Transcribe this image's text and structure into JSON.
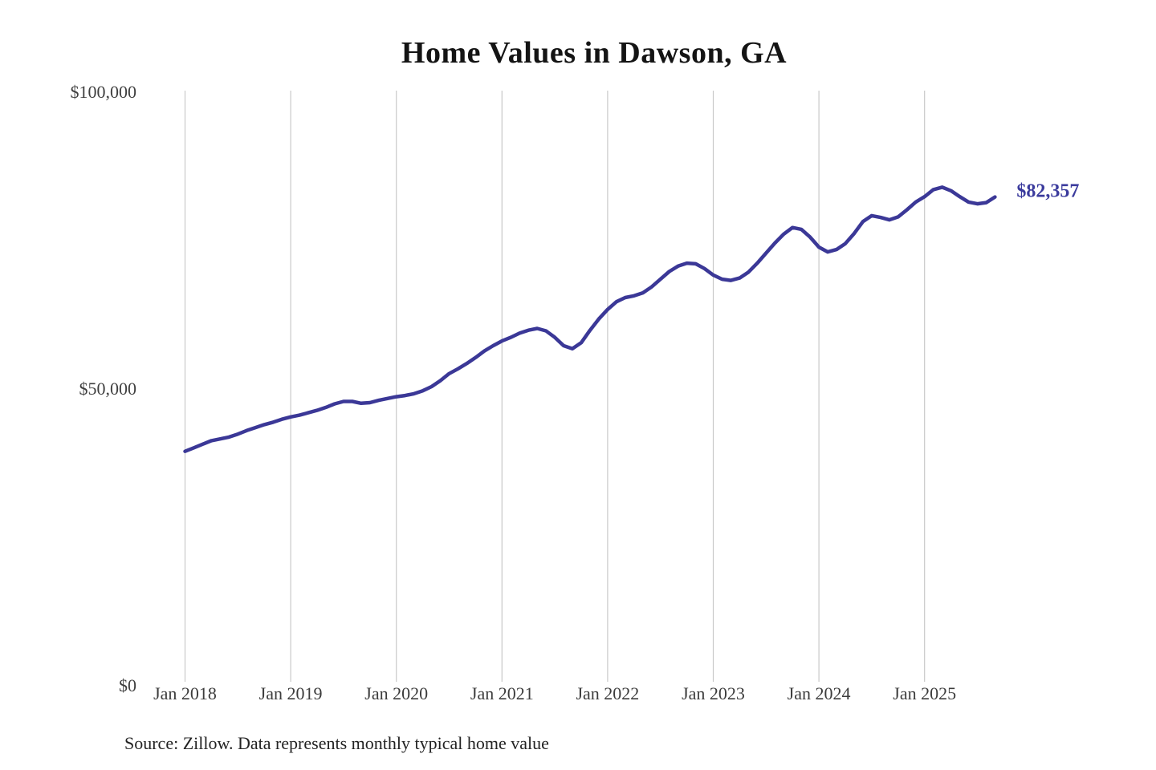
{
  "title": "Home Values in Dawson, GA",
  "source_note": "Source: Zillow. Data represents monthly typical home value",
  "end_label": "$82,357",
  "colors": {
    "line": "#3b3897",
    "end_label": "#3b3b9d",
    "gridline": "#c9c9c9",
    "title": "#141414",
    "axis_text": "#3f3f3f",
    "source_text": "#232323"
  },
  "chart_data": {
    "type": "line",
    "title": "Home Values in Dawson, GA",
    "xlabel": "",
    "ylabel": "",
    "ylim": [
      0,
      100000
    ],
    "grid": "vertical-only",
    "legend": "none",
    "x_start_month": "2018-01",
    "x_end_month": "2025-09",
    "months_per_tick": 12,
    "x_tick_labels": [
      "Jan 2018",
      "Jan 2019",
      "Jan 2020",
      "Jan 2021",
      "Jan 2022",
      "Jan 2023",
      "Jan 2024",
      "Jan 2025"
    ],
    "y_ticks": [
      {
        "label": "$0",
        "value": 0
      },
      {
        "label": "$50,000",
        "value": 50000
      },
      {
        "label": "$100,000",
        "value": 100000
      }
    ],
    "end_value": 82357,
    "series": [
      {
        "name": "Monthly typical home value",
        "values": [
          39500,
          40100,
          40700,
          41300,
          41600,
          41900,
          42400,
          43000,
          43500,
          44000,
          44400,
          44900,
          45300,
          45600,
          46000,
          46400,
          46900,
          47500,
          47900,
          47900,
          47600,
          47700,
          48100,
          48400,
          48700,
          48900,
          49200,
          49700,
          50400,
          51400,
          52600,
          53400,
          54300,
          55300,
          56400,
          57300,
          58100,
          58700,
          59400,
          59900,
          60200,
          59800,
          58700,
          57300,
          56800,
          57800,
          59900,
          61800,
          63400,
          64700,
          65400,
          65700,
          66200,
          67200,
          68500,
          69800,
          70700,
          71200,
          71100,
          70300,
          69200,
          68500,
          68300,
          68700,
          69700,
          71200,
          72900,
          74600,
          76100,
          77200,
          76900,
          75600,
          73900,
          73100,
          73500,
          74500,
          76200,
          78200,
          79200,
          78900,
          78500,
          79000,
          80200,
          81500,
          82400,
          83600,
          84000,
          83400,
          82400,
          81500,
          81200,
          81400,
          82357
        ]
      }
    ]
  }
}
